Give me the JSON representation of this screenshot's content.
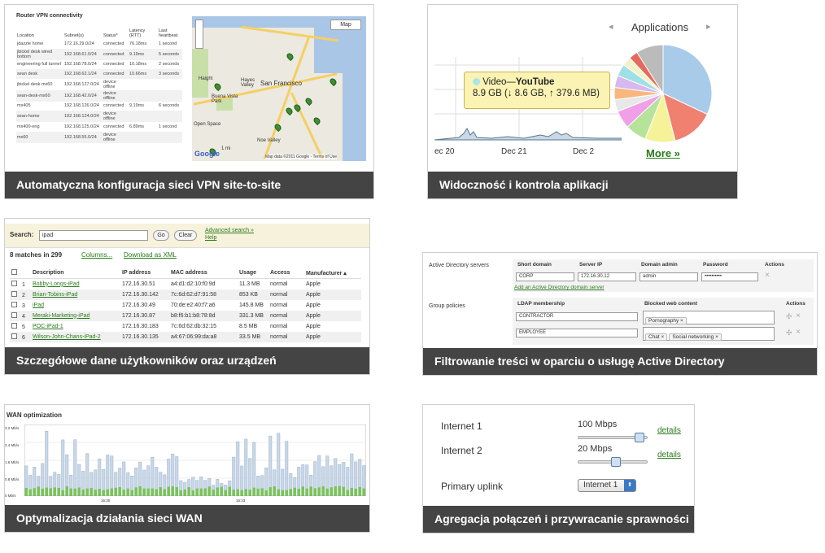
{
  "vpn": {
    "title": "Router VPN connectivity",
    "caption": "Automatyczna konfiguracja sieci VPN site-to-site",
    "columns": [
      "Location",
      "Subnet(s)",
      "Status*",
      "Latency (RTT)",
      "Last heartbeat"
    ],
    "rows": [
      [
        "jdazzle home",
        "172.16.29.0/24",
        "connected",
        "76.18ms",
        "1 second"
      ],
      [
        "jbickel desk wired bottom",
        "192.168.61.0/24",
        "connected",
        "9.19ms",
        "5 seconds"
      ],
      [
        "engineering full tunnel",
        "192.168.78.0/24",
        "connected",
        "10.18ms",
        "2 seconds"
      ],
      [
        "sean desk",
        "192.168.62.1/24",
        "connected",
        "10.66ms",
        "3 seconds"
      ],
      [
        "jbickel desk mx60",
        "192.168.127.0/24",
        "device offline",
        "",
        ""
      ],
      [
        "sean-desk-mx60",
        "192.168.42.0/24",
        "device offline",
        "",
        ""
      ],
      [
        "mx405",
        "192.168.126.0/24",
        "connected",
        "9.19ms",
        "6 seconds"
      ],
      [
        "sean-home",
        "192.168.124.0/24",
        "device offline",
        "",
        ""
      ],
      [
        "mx400-eng",
        "192.168.125.0/24",
        "connected",
        "6.89ms",
        "1 second"
      ],
      [
        "mx60",
        "192.168.55.0/24",
        "device offline",
        "",
        ""
      ]
    ],
    "map": {
      "type_button": "Map",
      "city": "San Francisco",
      "labels": [
        "Haight",
        "Buena Vista Park",
        "Open Space",
        "Noe Valley",
        "Hayes Valley"
      ],
      "attribution": "Map data ©2011 Google - Terms of Use",
      "scale": "1 mi",
      "logo": "Google"
    }
  },
  "apps": {
    "title": "Applications",
    "caption": "Widoczność i kontrola aplikacji",
    "tooltip_title": "Video—",
    "tooltip_app": "YouTube",
    "tooltip_detail": "8.9 GB (↓ 8.6 GB, ↑ 379.6 MB)",
    "x_labels": [
      "ec 20",
      "Dec 21",
      "Dec 2"
    ],
    "more_link": "More »",
    "prev_icon": "◂",
    "next_icon": "▸",
    "colors": {
      "pie": [
        "#a8cbea",
        "#f08070",
        "#f6f29a",
        "#b6e29a",
        "#f0a0e6",
        "#e8e8e8",
        "#f7b77f",
        "#d8b8f0",
        "#9fe0e6",
        "#f2f2c8",
        "#e66a5c",
        "#bbbbbb"
      ]
    }
  },
  "users": {
    "search_label": "Search:",
    "search_value": "ipad",
    "go": "Go",
    "clear": "Clear",
    "advanced": "Advanced search »",
    "help": "Help",
    "matches": "8 matches in 299",
    "columns_link": "Columns...",
    "download_link": "Download as XML",
    "headers": [
      "",
      "Description",
      "IP address",
      "MAC address",
      "Usage",
      "Access",
      "Manufacturer ▴"
    ],
    "rows": [
      [
        "1",
        "Bobby-Longs-iPad",
        "172.16.30.51",
        "a4:d1:d2:10:f0:9d",
        "11.3 MB",
        "normal",
        "Apple"
      ],
      [
        "2",
        "Brian-Tobins-iPad",
        "172.16.30.142",
        "7c:6d:62:d7:91:58",
        "853 KB",
        "normal",
        "Apple"
      ],
      [
        "3",
        "iPad",
        "172.16.30.49",
        "70:de:e2:40:f7:a6",
        "145.8 MB",
        "normal",
        "Apple"
      ],
      [
        "4",
        "Meraki-Marketing-iPad",
        "172.16.30.87",
        "b8:f6:b1:b8:78:8d",
        "331.3 MB",
        "normal",
        "Apple"
      ],
      [
        "5",
        "POC-iPad-1",
        "172.16.30.183",
        "7c:6d:62:db:32:15",
        "8.5 MB",
        "normal",
        "Apple"
      ],
      [
        "6",
        "Wilson-John-Chans-iPad-2",
        "172.16.30.135",
        "a4:67:06:99:da:a8",
        "33.5 MB",
        "normal",
        "Apple"
      ]
    ],
    "caption": "Szczegółowe dane użytkowników oraz urządzeń"
  },
  "ad": {
    "servers_label": "Active Directory servers",
    "headers": [
      "Short domain",
      "Server IP",
      "Domain admin",
      "Password",
      "Actions"
    ],
    "short_domain": "CORP",
    "server_ip": "172.16.30.12",
    "domain_admin": "admin",
    "password": "••••••••••",
    "add_link": "Add an Active Directory domain server",
    "group_label": "Group policies",
    "group_headers": [
      "LDAP membership",
      "Blocked web content",
      "Actions"
    ],
    "groups": [
      {
        "ldap": "CONTRACTOR",
        "blocked": [
          "Pornography"
        ]
      },
      {
        "ldap": "EMPLOYEE",
        "blocked": [
          "Chat",
          "Social networking"
        ]
      }
    ],
    "remove_icon": "×",
    "move_icon": "✣",
    "caption": "Filtrowanie treści w oparciu o usługę Active Directory"
  },
  "wan": {
    "title": "WAN optimization",
    "y_labels": [
      "3.2 Mb/s",
      "2.4 Mb/s",
      "1.6 Mb/s",
      "0.8 Mb/s",
      "0 Mb/s"
    ],
    "x_labels": [
      "16:30",
      "16:33"
    ],
    "caption": "Optymalizacja działania sieci WAN"
  },
  "uplink": {
    "internet1_label": "Internet 1",
    "internet1_value": "100 Mbps",
    "internet1_level": 0.88,
    "internet2_label": "Internet 2",
    "internet2_value": "20 Mbps",
    "internet2_level": 0.55,
    "details1": "details",
    "details2": "details",
    "primary_label": "Primary uplink",
    "primary_value": "Internet 1",
    "caption": "Agregacja połączeń i przywracanie sprawności"
  }
}
